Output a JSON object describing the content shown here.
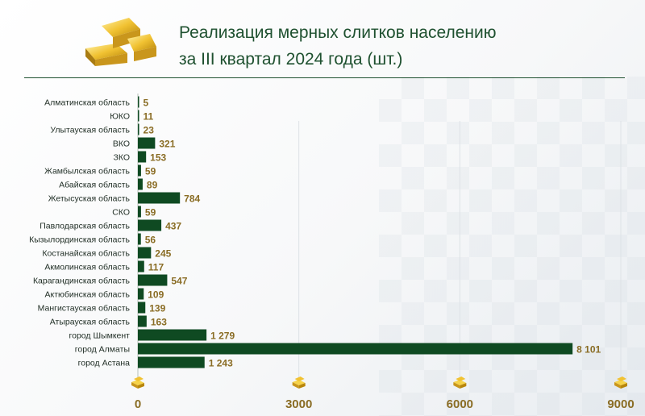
{
  "header": {
    "title_line1": "Реализация мерных слитков населению",
    "title_line2": "за III квартал 2024 года (шт.)"
  },
  "colors": {
    "bar": "#0f4a22",
    "value": "#8a6d25",
    "title": "#1f5130",
    "grid": "#dde2e6",
    "gold": "#e8b828"
  },
  "icons": {
    "header": "gold-bars-icon",
    "axis": "gold-bar-icon"
  },
  "chart_data": {
    "type": "bar",
    "orientation": "horizontal",
    "title": "Реализация мерных слитков населению за III квартал 2024 года (шт.)",
    "categories": [
      "Алматинская область",
      "ЮКО",
      "Улытауская  область",
      "ВКО",
      "ЗКО",
      "Жамбылская  область",
      "Абайская  область",
      "Жетысуская  область",
      "СКО",
      "Павлодарская область",
      "Кызылординская область",
      "Костанайская область",
      "Акмолинская область",
      "Карагандинская область",
      "Актюбинская область",
      "Мангистауская область",
      "Атырауская область",
      "город Шымкент",
      "город Алматы",
      "город Астана"
    ],
    "values": [
      5,
      11,
      23,
      321,
      153,
      59,
      89,
      784,
      59,
      437,
      56,
      245,
      117,
      547,
      109,
      139,
      163,
      1279,
      8101,
      1243
    ],
    "value_labels": [
      "5",
      "11",
      "23",
      "321",
      "153",
      "59",
      "89",
      "784",
      "59",
      "437",
      "56",
      "245",
      "117",
      "547",
      "109",
      "139",
      "163",
      "1 279",
      "8 101",
      "1 243"
    ],
    "xlim": [
      0,
      9000
    ],
    "x_ticks": [
      0,
      3000,
      6000,
      9000
    ],
    "x_tick_labels": [
      "0",
      "3000",
      "6000",
      "9000"
    ],
    "grid": true,
    "legend": "none"
  }
}
